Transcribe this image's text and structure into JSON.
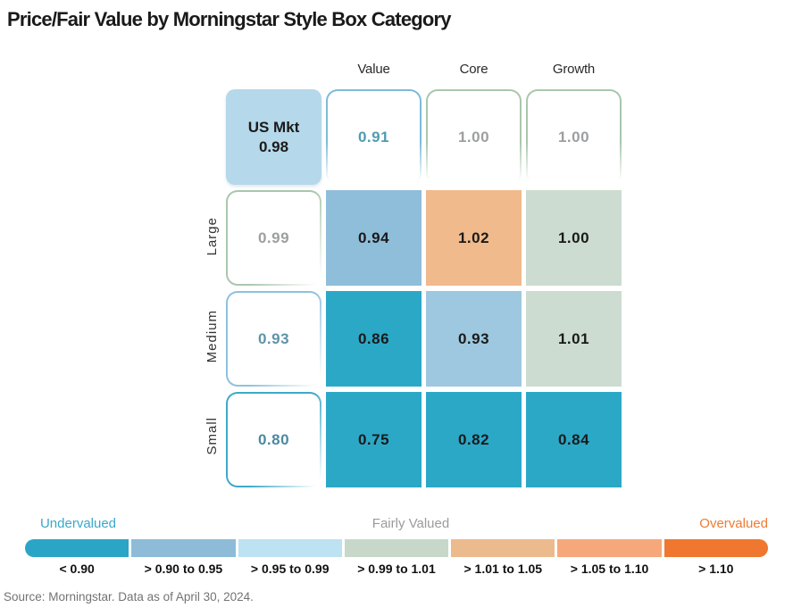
{
  "title": "Price/Fair Value by Morningstar Style Box Category",
  "source": "Source: Morningstar. Data as of April 30, 2024.",
  "grid": {
    "col_headers": [
      "Value",
      "Core",
      "Growth"
    ],
    "row_headers": [
      "Large",
      "Medium",
      "Small"
    ],
    "us_mkt": {
      "line1": "US Mkt",
      "line2": "0.98",
      "bg": "#B5D8EA"
    },
    "top_row": [
      {
        "value": "0.91",
        "border": "#7EBBD8",
        "text": "#4E9CB2"
      },
      {
        "value": "1.00",
        "border": "#A9C7AC",
        "text": "#9C9EA0"
      },
      {
        "value": "1.00",
        "border": "#A9C7AC",
        "text": "#9C9EA0"
      }
    ],
    "left_col": [
      {
        "value": "0.99",
        "border": "#A9C7AC",
        "text": "#9C9EA0"
      },
      {
        "value": "0.93",
        "border": "#8FC2DC",
        "text": "#5E93A6"
      },
      {
        "value": "0.80",
        "border": "#3FA9C9",
        "text": "#4C89A0"
      }
    ],
    "cells": [
      [
        {
          "value": "0.94",
          "bg": "#8FBEDA"
        },
        {
          "value": "1.02",
          "bg": "#F0BA8C"
        },
        {
          "value": "1.00",
          "bg": "#CCDCD0"
        }
      ],
      [
        {
          "value": "0.86",
          "bg": "#2CA8C7"
        },
        {
          "value": "0.93",
          "bg": "#9DC8E0"
        },
        {
          "value": "1.01",
          "bg": "#CCDCD0"
        }
      ],
      [
        {
          "value": "0.75",
          "bg": "#2CA8C7"
        },
        {
          "value": "0.82",
          "bg": "#2CA8C7"
        },
        {
          "value": "0.84",
          "bg": "#2CA8C7"
        }
      ]
    ]
  },
  "legend": {
    "titles": [
      {
        "label": "Undervalued",
        "color": "#3BA7CB"
      },
      {
        "label": "Fairly Valued",
        "color": "#9B9B9B"
      },
      {
        "label": "Overvalued",
        "color": "#EE7B35"
      }
    ],
    "segments": [
      {
        "label": "< 0.90",
        "color": "#2BA5C6"
      },
      {
        "label": "> 0.90 to 0.95",
        "color": "#8EBCD8"
      },
      {
        "label": "> 0.95 to 0.99",
        "color": "#BDE2F1"
      },
      {
        "label": "> 0.99 to 1.01",
        "color": "#C7D8CA"
      },
      {
        "label": "> 1.01 to 1.05",
        "color": "#EBBB8E"
      },
      {
        "label": "> 1.05 to 1.10",
        "color": "#F6A87B"
      },
      {
        "label": "> 1.10",
        "color": "#EF7730"
      }
    ]
  },
  "chart_data": {
    "type": "heatmap",
    "title": "Price/Fair Value by Morningstar Style Box Category",
    "columns": [
      "Value",
      "Core",
      "Growth"
    ],
    "rows": [
      "Large",
      "Medium",
      "Small"
    ],
    "us_market_price_fair_value": 0.98,
    "style_totals_by_column": {
      "Value": 0.91,
      "Core": 1.0,
      "Growth": 1.0
    },
    "size_totals_by_row": {
      "Large": 0.99,
      "Medium": 0.93,
      "Small": 0.8
    },
    "matrix": [
      [
        0.94,
        1.02,
        1.0
      ],
      [
        0.86,
        0.93,
        1.01
      ],
      [
        0.75,
        0.82,
        0.84
      ]
    ],
    "legend_buckets": [
      {
        "range": "< 0.90",
        "meaning": "Undervalued",
        "color": "#2BA5C6"
      },
      {
        "range": "> 0.90 to 0.95",
        "color": "#8EBCD8"
      },
      {
        "range": "> 0.95 to 0.99",
        "color": "#BDE2F1"
      },
      {
        "range": "> 0.99 to 1.01",
        "meaning": "Fairly Valued",
        "color": "#C7D8CA"
      },
      {
        "range": "> 1.01 to 1.05",
        "color": "#EBBB8E"
      },
      {
        "range": "> 1.05 to 1.10",
        "color": "#F6A87B"
      },
      {
        "range": "> 1.10",
        "meaning": "Overvalued",
        "color": "#EF7730"
      }
    ],
    "source": "Source: Morningstar. Data as of April 30, 2024."
  }
}
